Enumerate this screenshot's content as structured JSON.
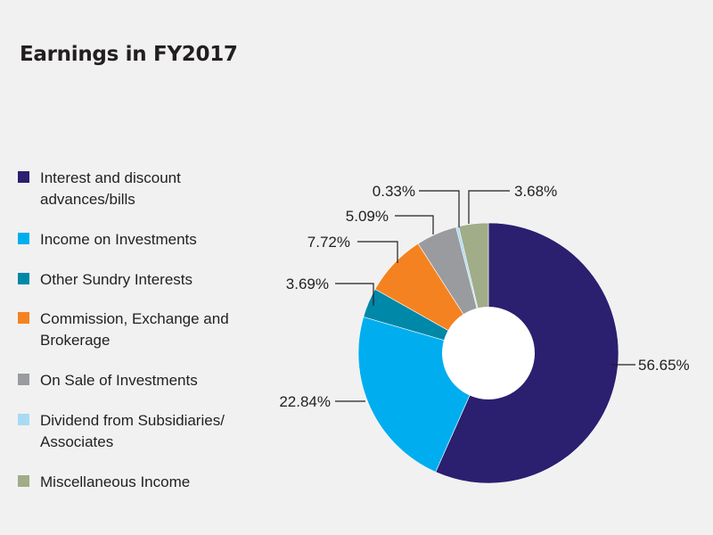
{
  "title": "Earnings in FY2017",
  "colors": {
    "background": "#f1f1f1",
    "text": "#231f20",
    "leader": "#231f20"
  },
  "chart_data": {
    "type": "pie",
    "variant": "donut",
    "title": "Earnings in FY2017",
    "legend_placement": "left",
    "slices": [
      {
        "label": "Interest and discount advances/bills",
        "label_lines": [
          "Interest and discount",
          "advances/bills"
        ],
        "value": 56.65,
        "display": "56.65%",
        "color": "#2b1f70"
      },
      {
        "label": "Income on Investments",
        "label_lines": [
          "Income on Investments"
        ],
        "value": 22.84,
        "display": "22.84%",
        "color": "#00aeef"
      },
      {
        "label": "Other Sundry Interests",
        "label_lines": [
          "Other Sundry Interests"
        ],
        "value": 3.69,
        "display": "3.69%",
        "color": "#0088a9"
      },
      {
        "label": "Commission, Exchange and Brokerage",
        "label_lines": [
          "Commission, Exchange and",
          "Brokerage"
        ],
        "value": 7.72,
        "display": "7.72%",
        "color": "#f58220"
      },
      {
        "label": "On Sale of Investments",
        "label_lines": [
          "On Sale of Investments"
        ],
        "value": 5.09,
        "display": "5.09%",
        "color": "#9a9b9f"
      },
      {
        "label": "Dividend from Subsidiaries/ Associates",
        "label_lines": [
          "Dividend from Subsidiaries/",
          "Associates"
        ],
        "value": 0.33,
        "display": "0.33%",
        "color": "#a7dbf3"
      },
      {
        "label": "Miscellaneous Income",
        "label_lines": [
          "Miscellaneous Income"
        ],
        "value": 3.68,
        "display": "3.68%",
        "color": "#a1ac88"
      }
    ]
  }
}
